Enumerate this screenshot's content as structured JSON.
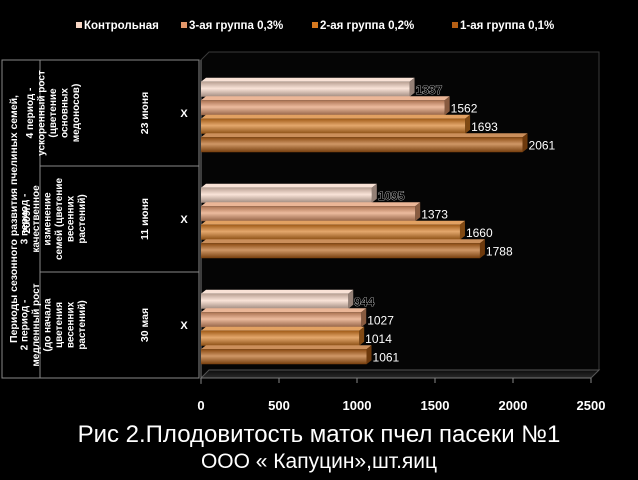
{
  "chart_data": {
    "type": "bar",
    "orientation": "horizontal",
    "x_axis": {
      "min": 0,
      "max": 2500,
      "ticks": [
        0,
        500,
        1000,
        1500,
        2000,
        2500
      ]
    },
    "series": [
      {
        "name": "Контрольная",
        "color": "#f7d6c4",
        "values": [
          1337,
          1095,
          944
        ]
      },
      {
        "name": "3-ая группа 0,3%",
        "color": "#e2976a",
        "values": [
          1562,
          1373,
          1027
        ]
      },
      {
        "name": "2-ая группа 0,2%",
        "color": "#d6791f",
        "values": [
          1693,
          1660,
          1014
        ]
      },
      {
        "name": "1-ая группа 0,1%",
        "color": "#b55f14",
        "values": [
          2061,
          1788,
          1061
        ]
      }
    ],
    "categories": [
      {
        "period": [
          "4 период -",
          "ускоренный рост",
          "(цветение",
          "основных",
          "медоносов)"
        ],
        "date": "23 июня",
        "mark": "Х"
      },
      {
        "period": [
          "3 период -",
          "качественное",
          "изменение",
          "семей (цветение",
          "весенних",
          "растений)"
        ],
        "date": "11 июня",
        "mark": "Х"
      },
      {
        "period": [
          "2 период -",
          "медленный рост",
          "(до начала",
          "цветения",
          "весенних",
          "растений)"
        ],
        "date": "30 мая",
        "mark": "Х"
      }
    ],
    "y_title": [
      "Периоды сезонного развития пчелиных семей,",
      "2009г."
    ],
    "legend_position": "top",
    "grid": false
  },
  "captions": {
    "line1": "Рис 2.Плодовитость маток  пчел пасеки  №1",
    "line2": "ООО « Капуцин»,шт.яиц"
  }
}
